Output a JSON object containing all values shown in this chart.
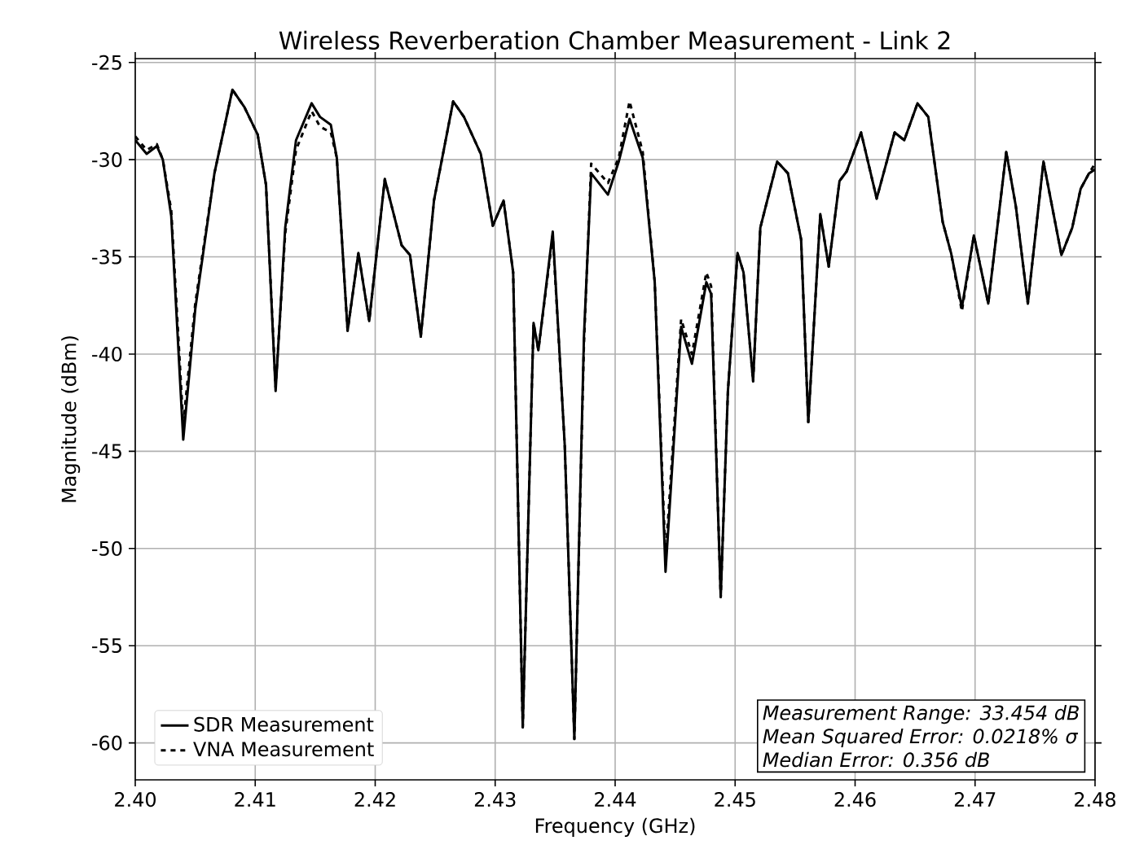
{
  "chart_data": {
    "type": "line",
    "title": "Wireless Reverberation Chamber Measurement - Link 2",
    "xlabel": "Frequency (GHz)",
    "ylabel": "Magnitude (dBm)",
    "xlim": [
      2.4,
      2.48
    ],
    "ylim": [
      -61.9,
      -24.8
    ],
    "xticks": [
      {
        "value": 2.4,
        "label": "2.40"
      },
      {
        "value": 2.41,
        "label": "2.41"
      },
      {
        "value": 2.42,
        "label": "2.42"
      },
      {
        "value": 2.43,
        "label": "2.43"
      },
      {
        "value": 2.44,
        "label": "2.44"
      },
      {
        "value": 2.45,
        "label": "2.45"
      },
      {
        "value": 2.46,
        "label": "2.46"
      },
      {
        "value": 2.47,
        "label": "2.47"
      },
      {
        "value": 2.48,
        "label": "2.48"
      }
    ],
    "yticks": [
      -60,
      -55,
      -50,
      -45,
      -40,
      -35,
      -30,
      -25
    ],
    "grid": true,
    "legend": "bottom left",
    "annotations": [
      "Measurement Range: 33.454 dB",
      "Mean Squared Error: 0.0218% σ",
      "Median Error: 0.356 dB"
    ],
    "x": [
      2.4,
      2.40095,
      2.4018,
      2.4023,
      2.403,
      2.404,
      2.405,
      2.4066,
      2.4081,
      2.4091,
      2.4102,
      2.4109,
      2.4117,
      2.4125,
      2.4134,
      2.4147,
      2.4154,
      2.4163,
      2.4168,
      2.4177,
      2.4186,
      2.4195,
      2.4208,
      2.4222,
      2.4229,
      2.4238,
      2.4249,
      2.4265,
      2.4274,
      2.4288,
      2.4298,
      2.4307,
      2.4315,
      2.4323,
      2.4332,
      2.4336,
      2.4348,
      2.4358,
      2.4366,
      2.4374,
      2.438,
      2.4394,
      2.4403,
      2.4412,
      2.4423,
      2.4433,
      2.4442,
      2.4455,
      2.4464,
      2.4476,
      2.448,
      2.4488,
      2.4494,
      2.4502,
      2.4507,
      2.4515,
      2.4521,
      2.4535,
      2.4544,
      2.4555,
      2.4561,
      2.4571,
      2.4578,
      2.4587,
      2.4593,
      2.4605,
      2.4618,
      2.4633,
      2.4641,
      2.4652,
      2.4661,
      2.4673,
      2.468,
      2.4689,
      2.4699,
      2.4711,
      2.4726,
      2.4734,
      2.4744,
      2.4757,
      2.4772,
      2.4781,
      2.4788,
      2.4795,
      2.48
    ],
    "series": [
      {
        "name": "SDR Measurement",
        "color": "#000000",
        "line_style": "solid",
        "values": [
          -29.0,
          -29.7,
          -29.3,
          -30.0,
          -32.9,
          -44.4,
          -37.7,
          -30.7,
          -26.4,
          -27.3,
          -28.7,
          -31.3,
          -41.9,
          -33.5,
          -29.0,
          -27.1,
          -27.8,
          -28.2,
          -29.9,
          -38.8,
          -34.8,
          -38.3,
          -31.0,
          -34.4,
          -34.9,
          -39.1,
          -32.1,
          -27.0,
          -27.8,
          -29.7,
          -33.4,
          -32.1,
          -35.8,
          -59.2,
          -38.4,
          -39.8,
          -33.7,
          -44.7,
          -59.8,
          -39.1,
          -30.7,
          -31.8,
          -30.1,
          -27.9,
          -29.9,
          -36.3,
          -51.2,
          -38.6,
          -40.5,
          -36.3,
          -36.9,
          -52.5,
          -41.9,
          -34.8,
          -35.8,
          -41.4,
          -33.5,
          -30.1,
          -30.7,
          -34.1,
          -43.5,
          -32.8,
          -35.5,
          -31.1,
          -30.6,
          -28.6,
          -32.0,
          -28.6,
          -29.0,
          -27.1,
          -27.8,
          -33.2,
          -34.8,
          -37.6,
          -33.9,
          -37.4,
          -29.6,
          -32.4,
          -37.4,
          -30.1,
          -34.9,
          -33.5,
          -31.5,
          -30.7,
          -30.5
        ]
      },
      {
        "name": "VNA Measurement",
        "color": "#000000",
        "line_style": "dashed",
        "values": [
          -28.8,
          -29.5,
          -29.2,
          -30.0,
          -32.6,
          -43.6,
          -37.4,
          -30.7,
          -26.4,
          -27.3,
          -28.7,
          -31.3,
          -41.7,
          -33.8,
          -29.5,
          -27.5,
          -28.3,
          -28.6,
          -29.9,
          -38.8,
          -34.8,
          -38.3,
          -31.0,
          -34.4,
          -34.9,
          -39.1,
          -32.1,
          -27.0,
          -27.8,
          -29.7,
          -33.4,
          -32.1,
          -35.8,
          -59.2,
          -38.4,
          -39.8,
          -33.9,
          -44.7,
          -59.8,
          -39.5,
          -30.2,
          -31.2,
          -29.9,
          -27.0,
          -29.6,
          -36.3,
          -50.5,
          -38.2,
          -40.0,
          -35.8,
          -36.5,
          -52.5,
          -41.9,
          -34.8,
          -35.8,
          -41.4,
          -33.5,
          -30.1,
          -30.7,
          -34.1,
          -43.5,
          -32.8,
          -35.5,
          -31.1,
          -30.6,
          -28.6,
          -32.0,
          -28.6,
          -29.0,
          -27.1,
          -27.8,
          -33.2,
          -34.8,
          -37.8,
          -33.9,
          -37.4,
          -29.6,
          -32.4,
          -37.4,
          -30.1,
          -34.9,
          -33.5,
          -31.5,
          -30.7,
          -30.2
        ]
      }
    ]
  }
}
